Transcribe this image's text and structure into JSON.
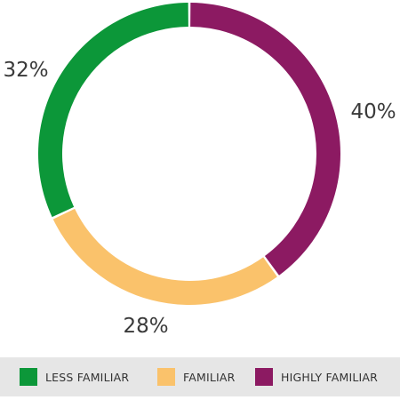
{
  "chart_data": {
    "type": "pie",
    "donut": true,
    "title": "",
    "categories": [
      "HIGHLY FAMILIAR",
      "FAMILIAR",
      "LESS FAMILIAR"
    ],
    "values": [
      40,
      28,
      32
    ],
    "labels": [
      "40%",
      "28%",
      "32%"
    ],
    "colors": [
      "#8c1a62",
      "#fac26b",
      "#0c9739"
    ],
    "legend_position": "bottom",
    "legend": [
      {
        "label": "LESS FAMILIAR",
        "color": "#0c9739"
      },
      {
        "label": "FAMILIAR",
        "color": "#fac26b"
      },
      {
        "label": "HIGHLY FAMILIAR",
        "color": "#8c1a62"
      }
    ]
  }
}
